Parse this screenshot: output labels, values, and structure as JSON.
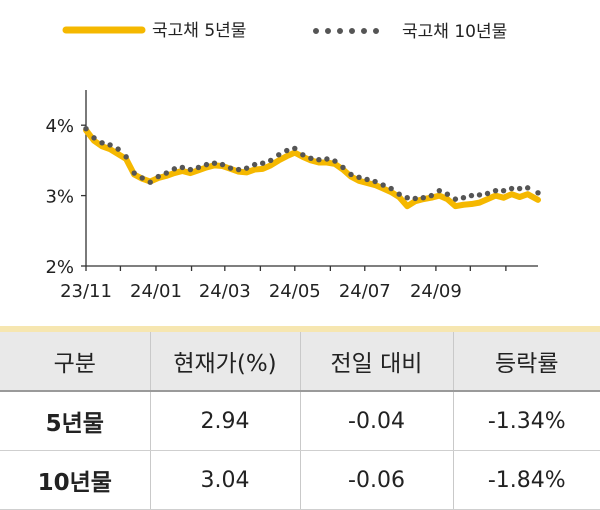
{
  "chart_data": {
    "type": "line",
    "x_range": [
      "2023-11-01",
      "2024-11-29"
    ],
    "ylim": [
      2,
      4.5
    ],
    "y_ticks": [
      "2%",
      "3%",
      "4%"
    ],
    "x_tick_labels": [
      "23/11",
      "24/01",
      "24/03",
      "24/05",
      "24/07",
      "24/09"
    ],
    "grid": false,
    "legend_position": "top",
    "series": [
      {
        "name": "국고채 5년물",
        "style": "solid",
        "color": "#f5b800",
        "points": [
          [
            "2023-11-01",
            3.93
          ],
          [
            "2023-11-08",
            3.78
          ],
          [
            "2023-11-15",
            3.7
          ],
          [
            "2023-11-22",
            3.66
          ],
          [
            "2023-11-29",
            3.59
          ],
          [
            "2023-12-06",
            3.52
          ],
          [
            "2023-12-13",
            3.3
          ],
          [
            "2023-12-20",
            3.24
          ],
          [
            "2023-12-27",
            3.2
          ],
          [
            "2024-01-03",
            3.25
          ],
          [
            "2024-01-10",
            3.28
          ],
          [
            "2024-01-17",
            3.32
          ],
          [
            "2024-01-24",
            3.35
          ],
          [
            "2024-01-31",
            3.32
          ],
          [
            "2024-02-07",
            3.36
          ],
          [
            "2024-02-14",
            3.4
          ],
          [
            "2024-02-21",
            3.43
          ],
          [
            "2024-02-28",
            3.42
          ],
          [
            "2024-03-06",
            3.38
          ],
          [
            "2024-03-13",
            3.34
          ],
          [
            "2024-03-20",
            3.33
          ],
          [
            "2024-03-27",
            3.37
          ],
          [
            "2024-04-03",
            3.38
          ],
          [
            "2024-04-10",
            3.43
          ],
          [
            "2024-04-17",
            3.5
          ],
          [
            "2024-04-24",
            3.56
          ],
          [
            "2024-05-01",
            3.61
          ],
          [
            "2024-05-08",
            3.55
          ],
          [
            "2024-05-15",
            3.5
          ],
          [
            "2024-05-22",
            3.47
          ],
          [
            "2024-05-29",
            3.47
          ],
          [
            "2024-06-05",
            3.45
          ],
          [
            "2024-06-12",
            3.37
          ],
          [
            "2024-06-19",
            3.27
          ],
          [
            "2024-06-26",
            3.21
          ],
          [
            "2024-07-03",
            3.18
          ],
          [
            "2024-07-10",
            3.15
          ],
          [
            "2024-07-17",
            3.1
          ],
          [
            "2024-07-24",
            3.05
          ],
          [
            "2024-07-31",
            2.98
          ],
          [
            "2024-08-07",
            2.85
          ],
          [
            "2024-08-14",
            2.92
          ],
          [
            "2024-08-21",
            2.95
          ],
          [
            "2024-08-28",
            2.97
          ],
          [
            "2024-09-04",
            3.0
          ],
          [
            "2024-09-11",
            2.95
          ],
          [
            "2024-09-18",
            2.85
          ],
          [
            "2024-09-25",
            2.87
          ],
          [
            "2024-10-02",
            2.88
          ],
          [
            "2024-10-09",
            2.9
          ],
          [
            "2024-10-16",
            2.95
          ],
          [
            "2024-10-23",
            3.0
          ],
          [
            "2024-10-30",
            2.97
          ],
          [
            "2024-11-06",
            3.02
          ],
          [
            "2024-11-13",
            2.98
          ],
          [
            "2024-11-20",
            3.02
          ],
          [
            "2024-11-29",
            2.94
          ]
        ]
      },
      {
        "name": "국고채 10년물",
        "style": "dotted",
        "color": "#555555",
        "points": [
          [
            "2023-11-01",
            3.95
          ],
          [
            "2023-11-08",
            3.82
          ],
          [
            "2023-11-15",
            3.75
          ],
          [
            "2023-11-22",
            3.72
          ],
          [
            "2023-11-29",
            3.66
          ],
          [
            "2023-12-06",
            3.55
          ],
          [
            "2023-12-13",
            3.32
          ],
          [
            "2023-12-20",
            3.25
          ],
          [
            "2023-12-27",
            3.19
          ],
          [
            "2024-01-03",
            3.27
          ],
          [
            "2024-01-10",
            3.32
          ],
          [
            "2024-01-17",
            3.38
          ],
          [
            "2024-01-24",
            3.4
          ],
          [
            "2024-01-31",
            3.37
          ],
          [
            "2024-02-07",
            3.4
          ],
          [
            "2024-02-14",
            3.44
          ],
          [
            "2024-02-21",
            3.46
          ],
          [
            "2024-02-28",
            3.44
          ],
          [
            "2024-03-06",
            3.39
          ],
          [
            "2024-03-13",
            3.37
          ],
          [
            "2024-03-20",
            3.39
          ],
          [
            "2024-03-27",
            3.44
          ],
          [
            "2024-04-03",
            3.46
          ],
          [
            "2024-04-10",
            3.5
          ],
          [
            "2024-04-17",
            3.58
          ],
          [
            "2024-04-24",
            3.64
          ],
          [
            "2024-05-01",
            3.67
          ],
          [
            "2024-05-08",
            3.58
          ],
          [
            "2024-05-15",
            3.53
          ],
          [
            "2024-05-22",
            3.51
          ],
          [
            "2024-05-29",
            3.52
          ],
          [
            "2024-06-05",
            3.49
          ],
          [
            "2024-06-12",
            3.4
          ],
          [
            "2024-06-19",
            3.3
          ],
          [
            "2024-06-26",
            3.26
          ],
          [
            "2024-07-03",
            3.23
          ],
          [
            "2024-07-10",
            3.2
          ],
          [
            "2024-07-17",
            3.15
          ],
          [
            "2024-07-24",
            3.1
          ],
          [
            "2024-07-31",
            3.02
          ],
          [
            "2024-08-07",
            2.97
          ],
          [
            "2024-08-14",
            2.96
          ],
          [
            "2024-08-21",
            2.97
          ],
          [
            "2024-08-28",
            3.0
          ],
          [
            "2024-09-04",
            3.07
          ],
          [
            "2024-09-11",
            3.02
          ],
          [
            "2024-09-18",
            2.95
          ],
          [
            "2024-09-25",
            2.97
          ],
          [
            "2024-10-02",
            3.0
          ],
          [
            "2024-10-09",
            3.01
          ],
          [
            "2024-10-16",
            3.03
          ],
          [
            "2024-10-23",
            3.07
          ],
          [
            "2024-10-30",
            3.07
          ],
          [
            "2024-11-06",
            3.1
          ],
          [
            "2024-11-13",
            3.1
          ],
          [
            "2024-11-20",
            3.11
          ],
          [
            "2024-11-29",
            3.04
          ]
        ]
      }
    ]
  },
  "table": {
    "headers": [
      "구분",
      "현재가(%)",
      "전일 대비",
      "등락률"
    ],
    "rows": [
      [
        "5년물",
        "2.94",
        "-0.04",
        "-1.34%"
      ],
      [
        "10년물",
        "3.04",
        "-0.06",
        "-1.84%"
      ]
    ]
  }
}
